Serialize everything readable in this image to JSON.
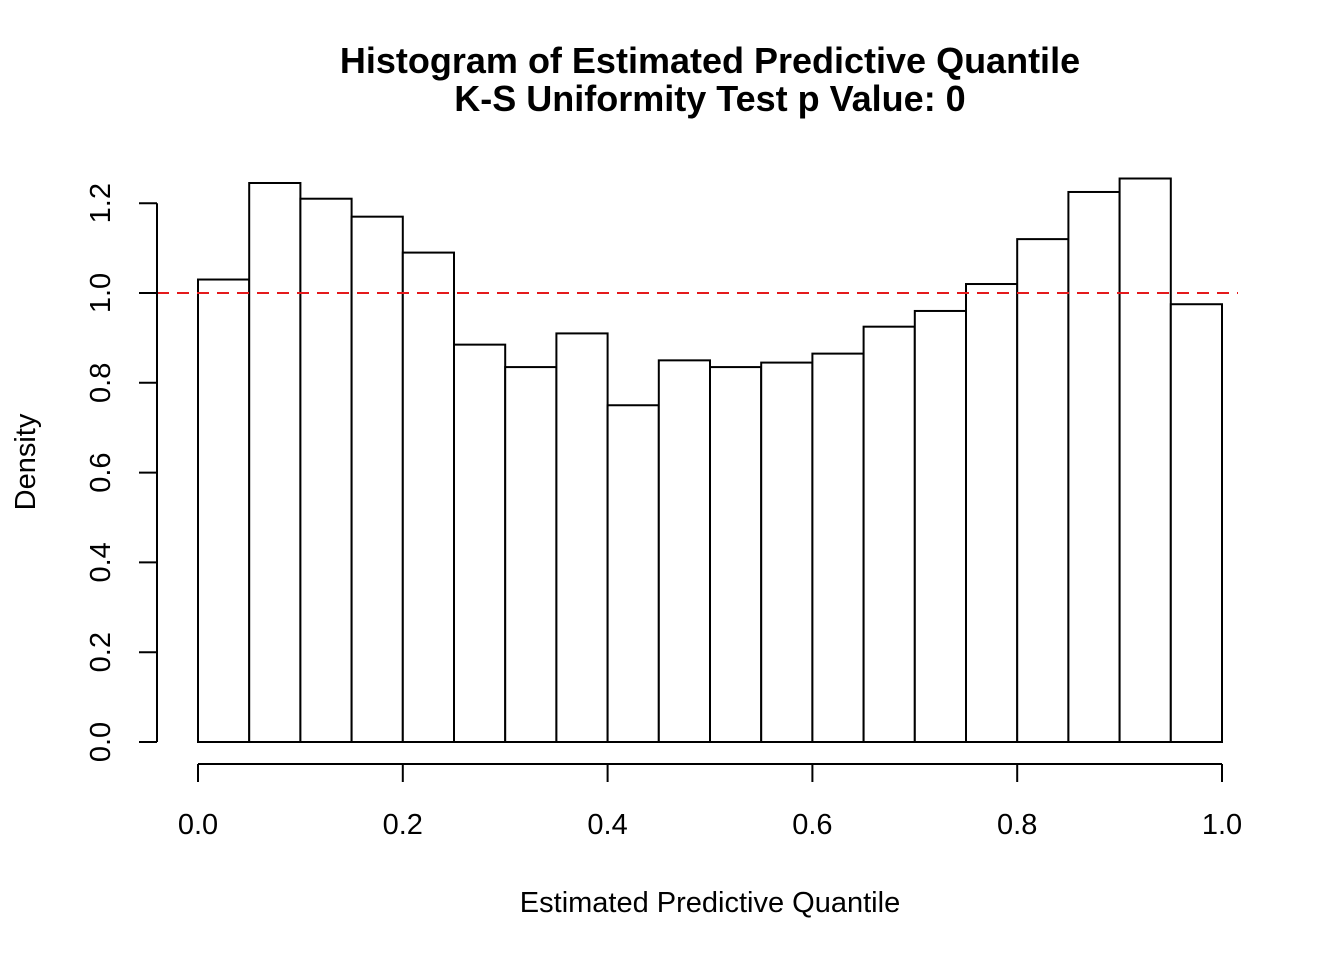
{
  "chart_data": {
    "type": "histogram",
    "title": "Histogram of Estimated Predictive Quantile",
    "subtitle": "K-S Uniformity Test p Value: 0",
    "xlabel": "Estimated Predictive Quantile",
    "ylabel": "Density",
    "xlim": [
      0,
      1
    ],
    "ylim": [
      0,
      1.25
    ],
    "x_ticks": [
      "0.0",
      "0.2",
      "0.4",
      "0.6",
      "0.8",
      "1.0"
    ],
    "y_ticks": [
      "0.0",
      "0.2",
      "0.4",
      "0.6",
      "0.8",
      "1.0",
      "1.2"
    ],
    "bin_edges": [
      0.0,
      0.05,
      0.1,
      0.15,
      0.2,
      0.25,
      0.3,
      0.35,
      0.4,
      0.45,
      0.5,
      0.55,
      0.6,
      0.65,
      0.7,
      0.75,
      0.8,
      0.85,
      0.9,
      0.95,
      1.0
    ],
    "values": [
      1.03,
      1.245,
      1.21,
      1.17,
      1.09,
      0.885,
      0.835,
      0.91,
      0.75,
      0.85,
      0.835,
      0.845,
      0.865,
      0.925,
      0.96,
      1.02,
      1.12,
      1.225,
      1.255,
      0.975
    ],
    "reference_line": {
      "y": 1.0,
      "style": "dashed",
      "color": "#e41a1c"
    },
    "bar_fill": "#ffffff",
    "bar_stroke": "#000000",
    "grid": false,
    "legend": "none"
  }
}
